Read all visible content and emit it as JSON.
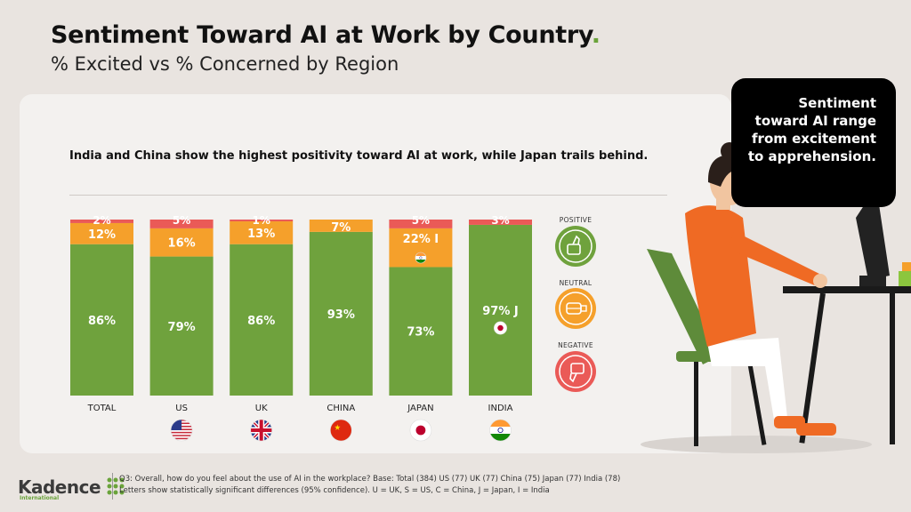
{
  "title": "Sentiment Toward AI at Work by Country",
  "title_dot": ".",
  "subtitle": "% Excited vs % Concerned by Region",
  "headline": "India and China show the highest positivity toward AI at work, while Japan trails behind.",
  "callout": "Sentiment toward AI range from excitement to apprehension.",
  "footer": {
    "brand": "Kadence",
    "brand_sub": "International",
    "note1": "Q3: Overall, how do you feel about the use of AI in the workplace? Base: Total (384) US (77) UK (77) China (75) Japan (77) India (78)",
    "note2": "Letters show statistically significant differences (95% confidence). U = UK, S = US, C = China, J = Japan, I = India"
  },
  "legend": {
    "positive": "POSITIVE",
    "neutral": "NEUTRAL",
    "negative": "NEGATIVE"
  },
  "colors": {
    "positive": "#6fa23d",
    "neutral": "#f5a02b",
    "negative": "#ea5a57",
    "accent": "#6aa33a"
  },
  "icons": {
    "positive": "thumbs-up-icon",
    "neutral": "fist-icon",
    "negative": "thumbs-down-icon"
  },
  "chart_data": {
    "type": "bar",
    "stacked": true,
    "normalized": true,
    "categories": [
      "TOTAL",
      "US",
      "UK",
      "CHINA",
      "JAPAN",
      "INDIA"
    ],
    "flags": [
      "",
      "us",
      "uk",
      "china",
      "japan",
      "india"
    ],
    "series": [
      {
        "name": "POSITIVE",
        "values": [
          86,
          79,
          86,
          93,
          73,
          97
        ],
        "labels": [
          "86%",
          "79%",
          "86%",
          "93%",
          "73%",
          "97% J"
        ]
      },
      {
        "name": "NEUTRAL",
        "values": [
          12,
          16,
          13,
          7,
          22,
          0
        ],
        "labels": [
          "12%",
          "16%",
          "13%",
          "7%",
          "22% I",
          ""
        ]
      },
      {
        "name": "NEGATIVE",
        "values": [
          2,
          5,
          1,
          0,
          5,
          3
        ],
        "labels": [
          "2%",
          "5%",
          "1%",
          "",
          "5%",
          "3%"
        ]
      }
    ],
    "significance_flags": {
      "JAPAN": "india",
      "INDIA": "japan"
    },
    "ylim": [
      0,
      100
    ]
  }
}
